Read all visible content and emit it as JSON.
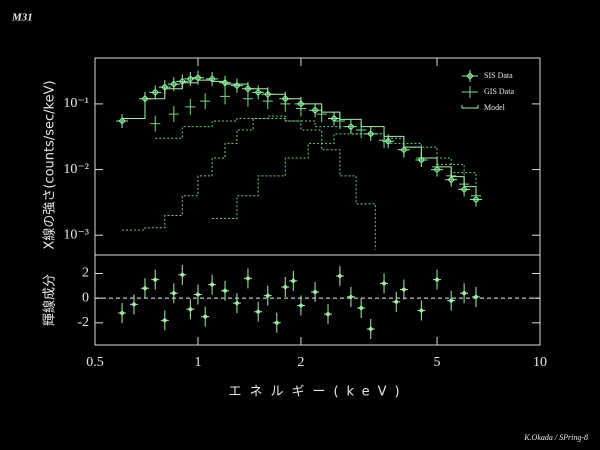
{
  "title": "M31",
  "credit": "K.Okada / SPring-8",
  "chart_data": [
    {
      "type": "spectrum",
      "ylabel": "X線の強さ(counts/sec/keV)",
      "log_x": true,
      "log_y": true,
      "xlim": [
        0.5,
        10
      ],
      "ylim": [
        0.0005,
        0.5
      ],
      "yticks": [
        {
          "value": 0.001,
          "label": "10⁻³"
        },
        {
          "value": 0.01,
          "label": "10⁻²"
        },
        {
          "value": 0.1,
          "label": "10⁻¹"
        }
      ],
      "legend": "upper right",
      "series": [
        {
          "name": "SIS Data",
          "color": "#8ff0a0",
          "marker": "diamond",
          "x": [
            0.6,
            0.7,
            0.75,
            0.8,
            0.85,
            0.9,
            0.95,
            1.0,
            1.1,
            1.2,
            1.3,
            1.4,
            1.5,
            1.6,
            1.8,
            2.0,
            2.2,
            2.5,
            2.8,
            3.2,
            3.6,
            4.0,
            4.5,
            5.0,
            5.5,
            6.0,
            6.5
          ],
          "values": [
            0.055,
            0.12,
            0.15,
            0.18,
            0.2,
            0.22,
            0.24,
            0.25,
            0.24,
            0.21,
            0.19,
            0.17,
            0.15,
            0.14,
            0.12,
            0.1,
            0.08,
            0.06,
            0.045,
            0.035,
            0.027,
            0.02,
            0.014,
            0.01,
            0.007,
            0.005,
            0.0035
          ]
        },
        {
          "name": "GIS Data",
          "color": "#7ad88a",
          "marker": "cross",
          "x": [
            0.75,
            0.85,
            0.95,
            1.05,
            1.2,
            1.4,
            1.6,
            1.8,
            2.0,
            2.3,
            2.6,
            3.0,
            3.5,
            4.0,
            4.5,
            5.0,
            5.5,
            6.0,
            6.5
          ],
          "values": [
            0.05,
            0.07,
            0.09,
            0.11,
            0.13,
            0.12,
            0.11,
            0.1,
            0.085,
            0.07,
            0.055,
            0.04,
            0.028,
            0.02,
            0.015,
            0.011,
            0.008,
            0.006,
            0.004
          ]
        },
        {
          "name": "Model",
          "color": "#a8f0b0",
          "marker": "step",
          "x": [
            0.6,
            0.7,
            0.8,
            0.9,
            1.0,
            1.1,
            1.2,
            1.4,
            1.6,
            1.8,
            2.0,
            2.3,
            2.6,
            3.0,
            3.5,
            4.0,
            4.5,
            5.0,
            5.5,
            6.0,
            6.5
          ],
          "values": [
            0.06,
            0.12,
            0.17,
            0.21,
            0.23,
            0.22,
            0.2,
            0.17,
            0.14,
            0.12,
            0.1,
            0.075,
            0.058,
            0.045,
            0.032,
            0.022,
            0.015,
            0.011,
            0.0078,
            0.0055,
            0.004
          ]
        }
      ],
      "components": [
        {
          "color": "#6fd080",
          "x": [
            0.75,
            0.9,
            1.1,
            1.3,
            1.5,
            1.8,
            2.2,
            2.8,
            3.5,
            4.5,
            5.5,
            6.5
          ],
          "values": [
            0.03,
            0.045,
            0.055,
            0.06,
            0.06,
            0.055,
            0.045,
            0.035,
            0.025,
            0.015,
            0.009,
            0.0055
          ]
        },
        {
          "color": "#6fd080",
          "x": [
            0.6,
            0.7,
            0.8,
            0.9,
            1.0,
            1.1,
            1.2,
            1.3,
            1.45,
            1.6,
            1.8,
            2.0,
            2.3,
            2.6,
            2.9,
            3.3
          ],
          "values": [
            0.0012,
            0.0013,
            0.002,
            0.004,
            0.008,
            0.015,
            0.025,
            0.04,
            0.06,
            0.065,
            0.055,
            0.04,
            0.02,
            0.008,
            0.003,
            0.0006
          ]
        },
        {
          "color": "#6fd080",
          "x": [
            1.1,
            1.3,
            1.5,
            1.8,
            2.1,
            2.5,
            3.0,
            3.5,
            4.0,
            5.0,
            6.0
          ],
          "values": [
            0.0018,
            0.004,
            0.008,
            0.015,
            0.025,
            0.035,
            0.035,
            0.03,
            0.022,
            0.012,
            0.006
          ]
        }
      ]
    },
    {
      "type": "residual",
      "ylabel": "輝線成分",
      "xlabel": "エネルギー(keV)",
      "log_x": true,
      "xlim": [
        0.5,
        10
      ],
      "ylim": [
        -3.8,
        3.5
      ],
      "xticks": [
        0.5,
        1,
        2,
        5,
        10
      ],
      "yticks": [
        -2,
        0,
        2
      ],
      "zero_line": true,
      "color": "#a8f0b0",
      "x": [
        0.6,
        0.65,
        0.7,
        0.75,
        0.8,
        0.85,
        0.9,
        0.95,
        1.0,
        1.05,
        1.1,
        1.2,
        1.3,
        1.4,
        1.5,
        1.6,
        1.7,
        1.8,
        1.9,
        2.0,
        2.2,
        2.4,
        2.6,
        2.8,
        3.0,
        3.2,
        3.5,
        3.8,
        4.0,
        4.5,
        5.0,
        5.5,
        6.0,
        6.5
      ],
      "values": [
        -1.2,
        -0.5,
        0.8,
        1.5,
        -1.8,
        0.4,
        1.9,
        -0.9,
        0.3,
        -1.5,
        1.1,
        0.6,
        -0.4,
        1.6,
        -1.1,
        0.2,
        -2.0,
        0.9,
        1.4,
        -0.6,
        0.5,
        -1.3,
        1.8,
        0.1,
        -0.8,
        -2.5,
        1.2,
        -0.3,
        0.7,
        -1.0,
        1.5,
        -0.2,
        0.4,
        0.1
      ]
    }
  ]
}
